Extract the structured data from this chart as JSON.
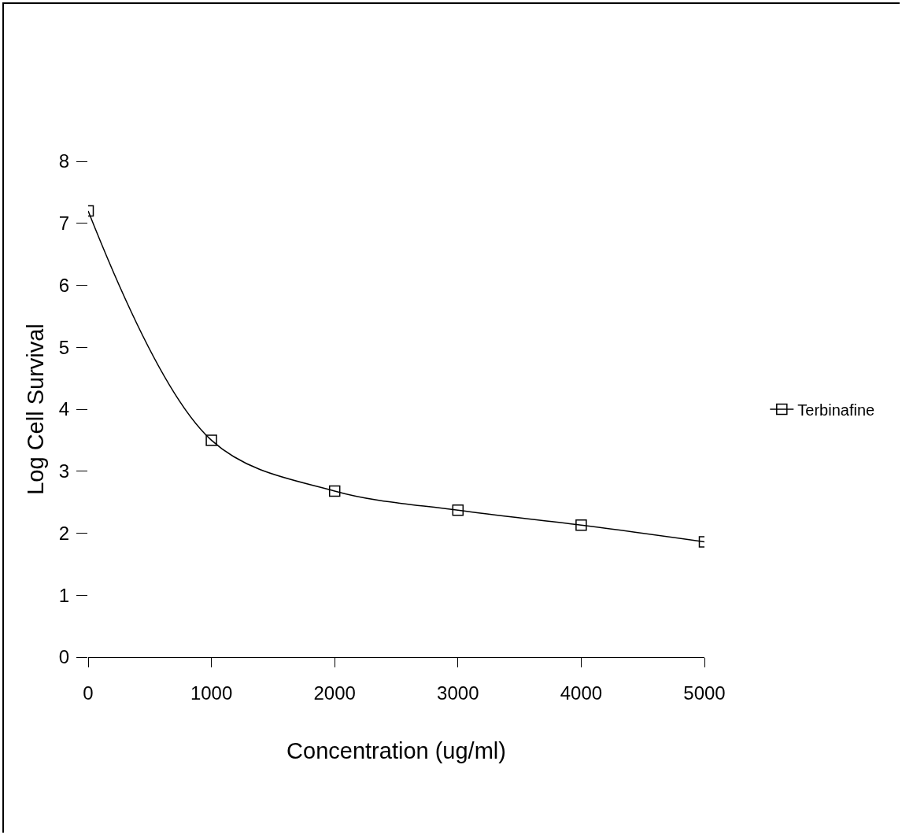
{
  "chart_data": {
    "type": "line",
    "xlabel": "Concentration (ug/ml)",
    "ylabel": "Log Cell Survival",
    "x": [
      0,
      1000,
      2000,
      3000,
      4000,
      5000
    ],
    "series": [
      {
        "name": "Terbinafine",
        "color": "#000000",
        "values": [
          7.2,
          3.5,
          2.68,
          2.37,
          2.13,
          1.86
        ]
      }
    ],
    "xlim": [
      0,
      5000
    ],
    "xticks": [
      0,
      1000,
      2000,
      3000,
      4000,
      5000
    ],
    "ylim": [
      0,
      8
    ],
    "yticks": [
      0,
      1,
      2,
      3,
      4,
      5,
      6,
      7,
      8
    ],
    "grid": false,
    "legend": "right",
    "marker": "square",
    "line_style": "solid"
  }
}
